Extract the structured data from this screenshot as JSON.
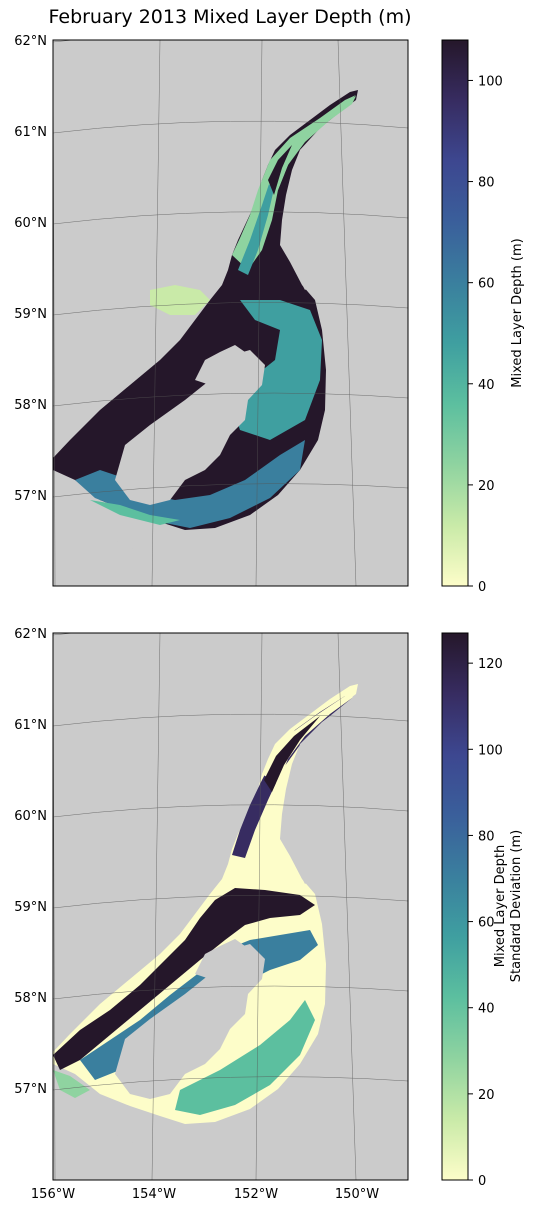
{
  "figure": {
    "title": "February 2013 Mixed Layer Depth (m)",
    "land_color": "#cbcbcb",
    "colormap": [
      "#fdfdc9",
      "#c9eaa8",
      "#8fd3a0",
      "#5cbf9f",
      "#3f9fa0",
      "#3a7f9e",
      "#3a5f9b",
      "#3d4790",
      "#372c61",
      "#25172a"
    ]
  },
  "axes": {
    "lat_labels": [
      "62°N",
      "61°N",
      "60°N",
      "59°N",
      "58°N",
      "57°N"
    ],
    "lon_labels": [
      "156°W",
      "154°W",
      "152°W",
      "150°W"
    ]
  },
  "panels": [
    {
      "id": "mld",
      "colorbar_label": [
        "Mixed Layer Depth (m)"
      ],
      "colorbar_ticks": [
        "0",
        "20",
        "40",
        "60",
        "80",
        "100"
      ],
      "colorbar_range": [
        0,
        108
      ]
    },
    {
      "id": "mld-std",
      "colorbar_label": [
        "Mixed Layer Depth",
        "Standard Deviation (m)"
      ],
      "colorbar_ticks": [
        "0",
        "20",
        "40",
        "60",
        "80",
        "100",
        "120"
      ],
      "colorbar_range": [
        0,
        127
      ]
    }
  ]
}
